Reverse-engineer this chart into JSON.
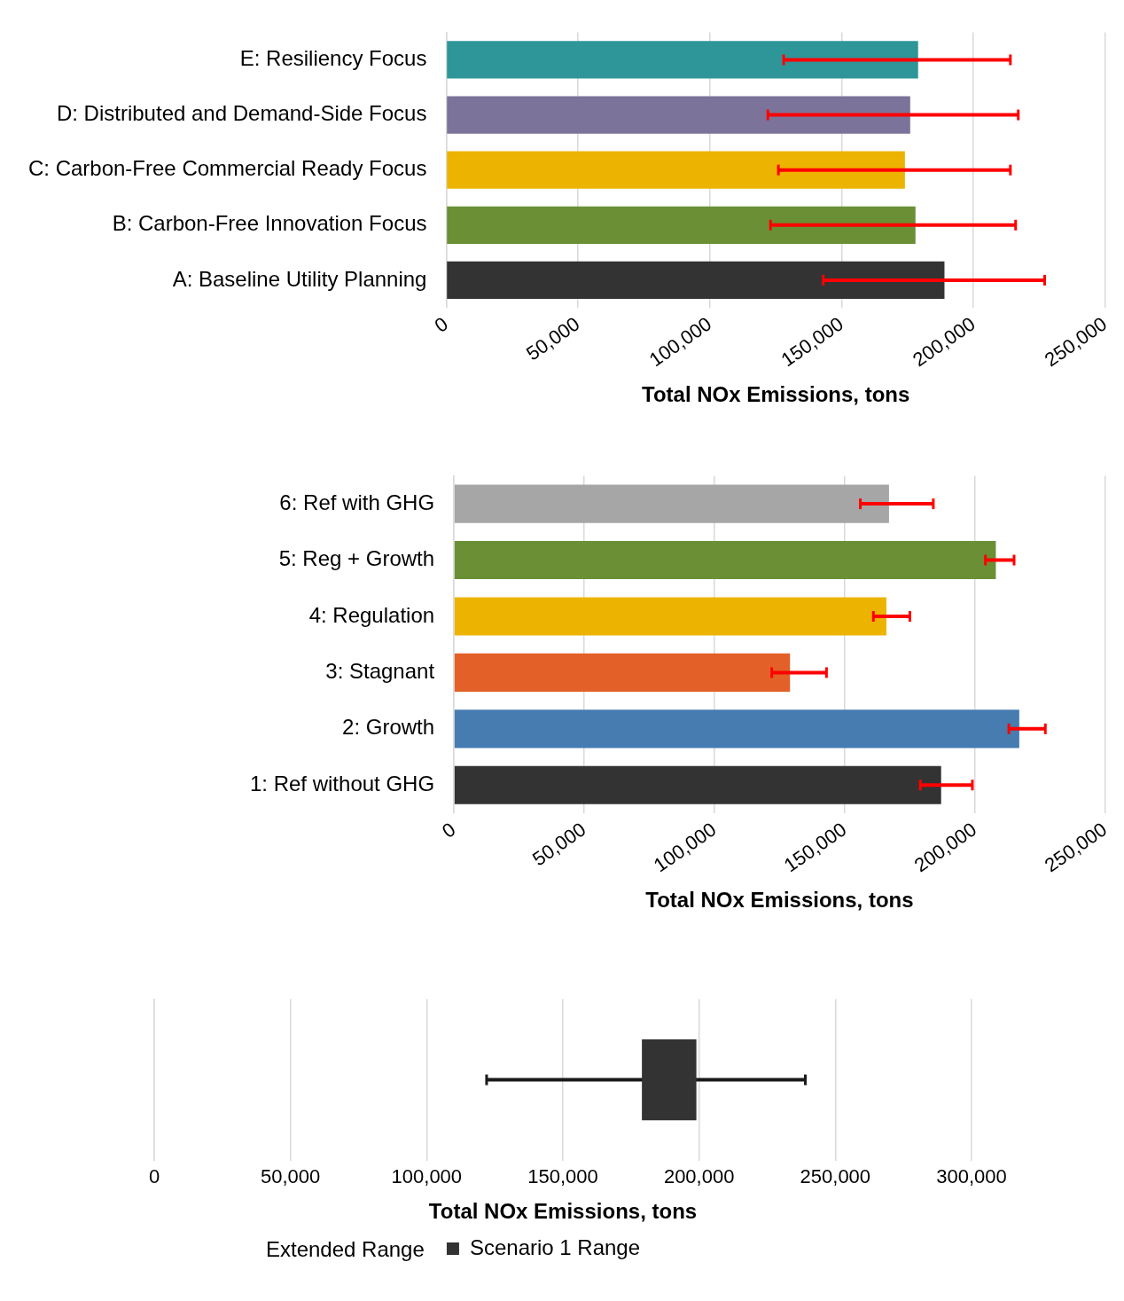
{
  "chart_data": [
    {
      "type": "bar",
      "orientation": "horizontal",
      "categories": [
        "E: Resiliency Focus",
        "D: Distributed and Demand-Side Focus",
        "C: Carbon-Free Commercial Ready Focus",
        "B: Carbon-Free Innovation Focus",
        "A: Baseline Utility Planning"
      ],
      "values": [
        179000,
        176000,
        174000,
        178000,
        189000
      ],
      "colors": [
        "#2e9599",
        "#7b7399",
        "#ecb300",
        "#6a8f35",
        "#333333"
      ],
      "errors": [
        [
          128000,
          214000
        ],
        [
          122000,
          217000
        ],
        [
          126000,
          214000
        ],
        [
          123000,
          216000
        ],
        [
          143000,
          227000
        ]
      ],
      "xlabel": "Total NOx Emissions, tons",
      "xlim": [
        0,
        250000
      ],
      "xticks": [
        {
          "value": 0,
          "label": "0"
        },
        {
          "value": 50000,
          "label": "50,000"
        },
        {
          "value": 100000,
          "label": "100,000"
        },
        {
          "value": 150000,
          "label": "150,000"
        },
        {
          "value": 200000,
          "label": "200,000"
        },
        {
          "value": 250000,
          "label": "250,000"
        }
      ],
      "grid": "x"
    },
    {
      "type": "bar",
      "orientation": "horizontal",
      "categories": [
        "6: Ref with GHG",
        "5: Reg + Growth",
        "4: Regulation",
        "3: Stagnant",
        "2: Growth",
        "1: Ref without GHG"
      ],
      "values": [
        167000,
        208000,
        166000,
        129000,
        217000,
        187000
      ],
      "colors": [
        "#a6a6a6",
        "#6a8f35",
        "#ecb300",
        "#e36128",
        "#467cb0",
        "#333333"
      ],
      "errors": [
        [
          156000,
          184000
        ],
        [
          204000,
          215000
        ],
        [
          161000,
          175000
        ],
        [
          122000,
          143000
        ],
        [
          213000,
          227000
        ],
        [
          179000,
          199000
        ]
      ],
      "xlabel": "Total NOx Emissions, tons",
      "xlim": [
        0,
        250000
      ],
      "xticks": [
        {
          "value": 0,
          "label": "0"
        },
        {
          "value": 50000,
          "label": "50,000"
        },
        {
          "value": 100000,
          "label": "100,000"
        },
        {
          "value": 150000,
          "label": "150,000"
        },
        {
          "value": 200000,
          "label": "200,000"
        },
        {
          "value": 250000,
          "label": "250,000"
        }
      ],
      "grid": "x"
    },
    {
      "type": "bar",
      "orientation": "horizontal",
      "categories": [
        null
      ],
      "series": [
        {
          "name": "Scenario 1 Range",
          "color": "#333333",
          "base": [
            179000
          ],
          "values": [
            20000
          ],
          "errors": [
            [
              122000,
              239000
            ]
          ]
        }
      ],
      "annotations": [
        "Extended Range"
      ],
      "xlabel": "Total NOx Emissions, tons",
      "xlim": [
        0,
        300000
      ],
      "xticks": [
        {
          "value": 0,
          "label": "0"
        },
        {
          "value": 50000,
          "label": "50,000"
        },
        {
          "value": 100000,
          "label": "100,000"
        },
        {
          "value": 150000,
          "label": "150,000"
        },
        {
          "value": 200000,
          "label": "200,000"
        },
        {
          "value": 250000,
          "label": "250,000"
        },
        {
          "value": 300000,
          "label": "300,000"
        }
      ],
      "grid": "x",
      "legend": "bottom"
    }
  ]
}
